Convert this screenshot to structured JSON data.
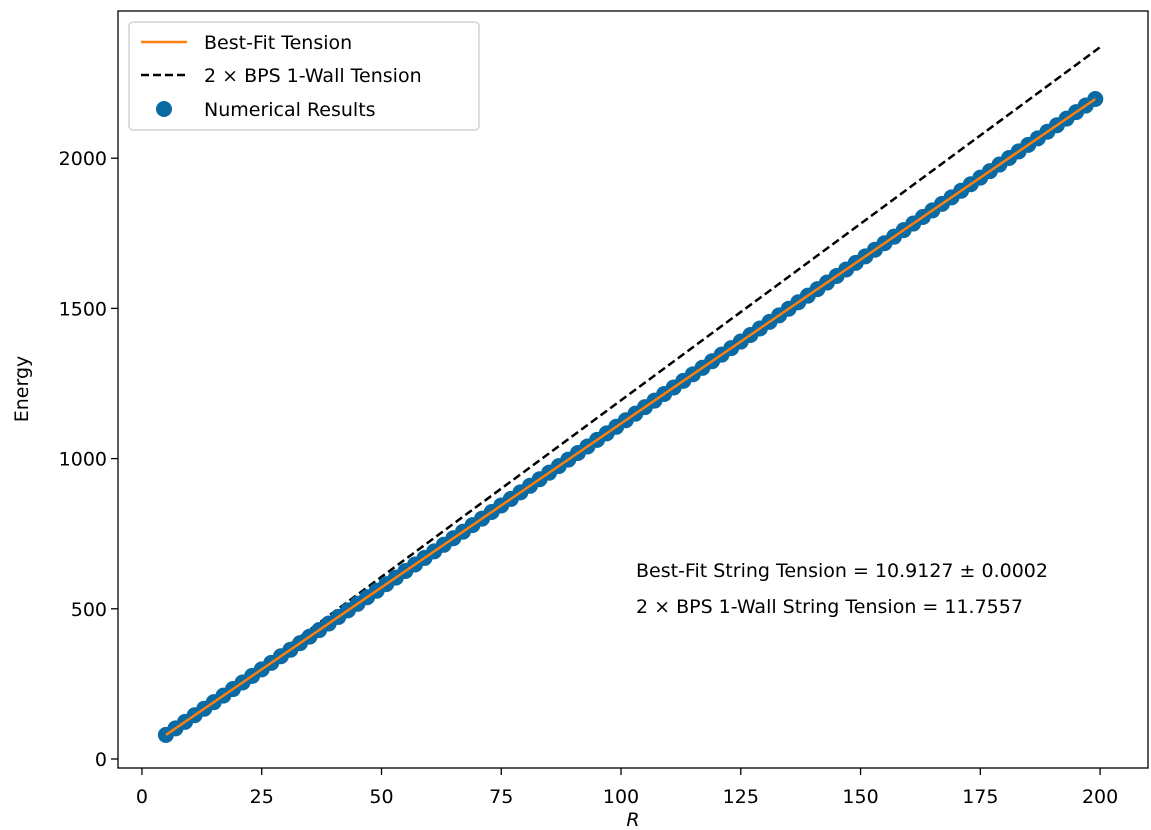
{
  "chart_data": {
    "type": "scatter",
    "xlabel": "R",
    "ylabel": "Energy",
    "xlim": [
      -5,
      210
    ],
    "ylim": [
      -30,
      2490
    ],
    "xticks": [
      0,
      25,
      50,
      75,
      100,
      125,
      150,
      175,
      200
    ],
    "yticks": [
      0,
      500,
      1000,
      1500,
      2000
    ],
    "grid": false,
    "legend_position": "upper-left",
    "x_start": 5,
    "x_end": 199,
    "x_step": 2,
    "series": [
      {
        "name": "Best-Fit Tension",
        "kind": "line",
        "style": "solid",
        "color": "#ff7f0e",
        "slope": 10.9127,
        "intercept": 25.5,
        "x_range": [
          5,
          199
        ]
      },
      {
        "name": "2 × BPS 1-Wall Tension",
        "kind": "line",
        "style": "dashed",
        "color": "#000000",
        "slope": 11.7557,
        "intercept": 18.5,
        "x_range": [
          5,
          200
        ]
      },
      {
        "name": "Numerical Results",
        "kind": "scatter",
        "color": "#0a6aa3",
        "slope": 10.9127,
        "intercept": 25.5
      }
    ],
    "annotations": [
      "Best-Fit String Tension = 10.9127 ± 0.0002",
      "2 × BPS 1-Wall String Tension = 11.7557"
    ]
  }
}
